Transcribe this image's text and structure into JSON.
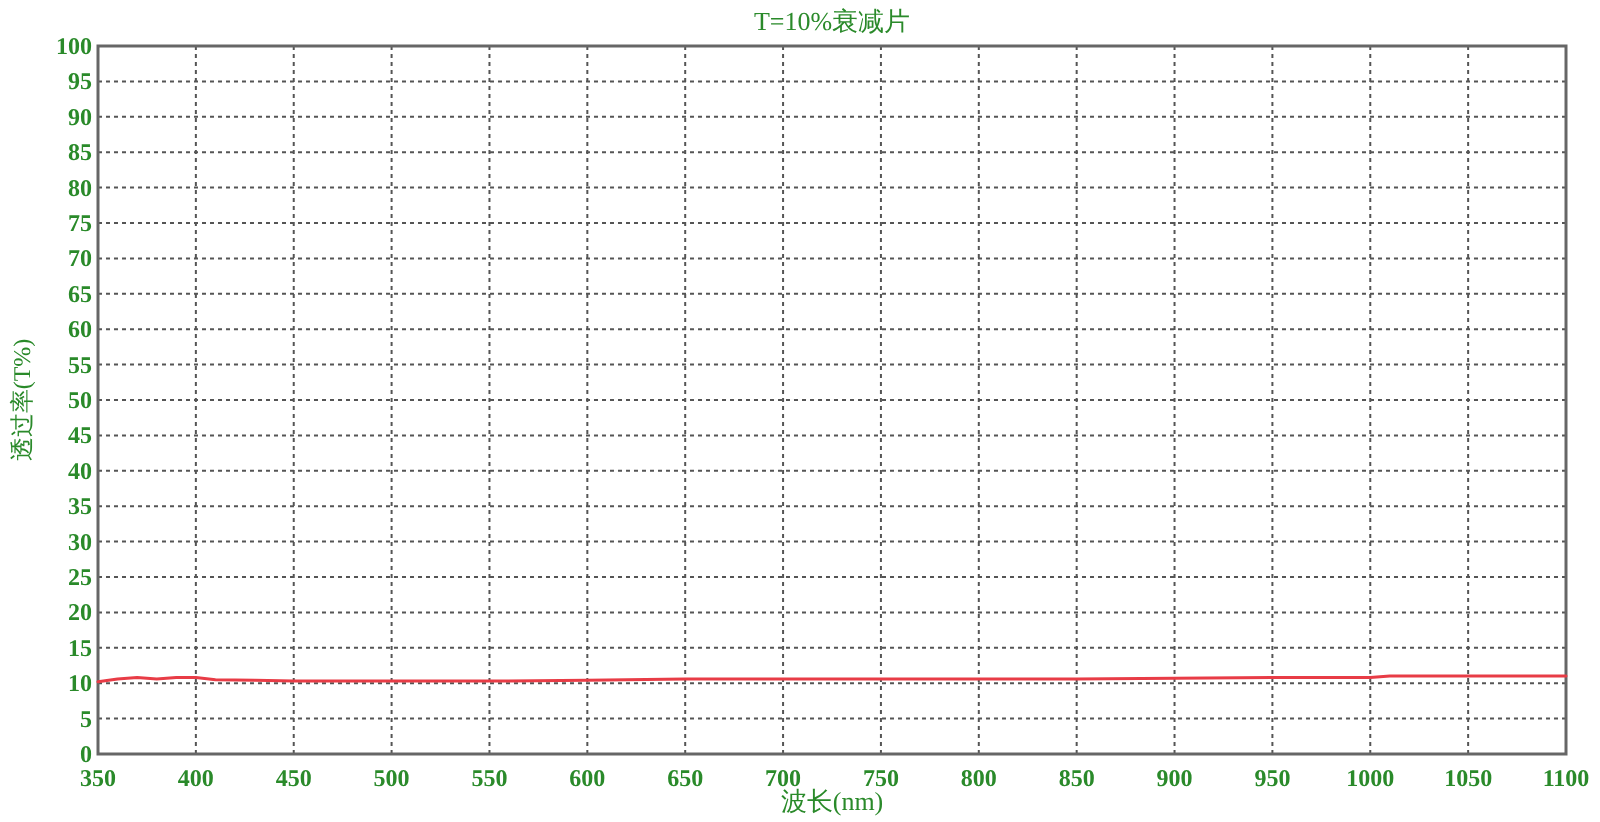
{
  "chart_data": {
    "type": "line",
    "title": "T=10%衰减片",
    "xlabel": "波长(nm)",
    "ylabel": "透过率(T%)",
    "xlim": [
      350,
      1100
    ],
    "xticks": [
      350,
      400,
      450,
      500,
      550,
      600,
      650,
      700,
      750,
      800,
      850,
      900,
      950,
      1000,
      1050,
      1100
    ],
    "ylim": [
      0,
      100
    ],
    "yticks": [
      0,
      5,
      10,
      15,
      20,
      25,
      30,
      35,
      40,
      45,
      50,
      55,
      60,
      65,
      70,
      75,
      80,
      85,
      90,
      95,
      100
    ],
    "grid": true,
    "line_style": "solid",
    "marker": "none",
    "x": [
      350,
      360,
      370,
      380,
      390,
      400,
      410,
      430,
      450,
      500,
      550,
      600,
      650,
      700,
      750,
      800,
      850,
      900,
      950,
      1000,
      1010,
      1050,
      1100
    ],
    "series": [
      {
        "color": "#e83c46",
        "values": [
          10.2,
          10.6,
          10.8,
          10.6,
          10.8,
          10.8,
          10.5,
          10.4,
          10.3,
          10.3,
          10.3,
          10.4,
          10.6,
          10.6,
          10.6,
          10.6,
          10.6,
          10.7,
          10.8,
          10.8,
          11.0,
          11.0,
          11.0
        ]
      }
    ]
  }
}
